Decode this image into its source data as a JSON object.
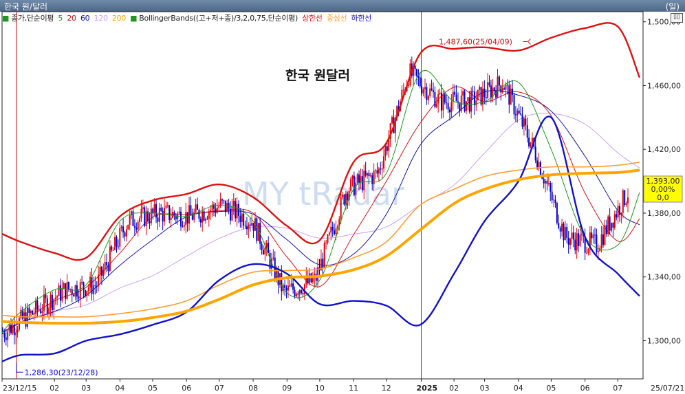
{
  "window": {
    "title": "한국 원/달러",
    "unit": "(일)"
  },
  "legend": {
    "price": "종가,단순이평",
    "ma5": "5",
    "ma20": "20",
    "ma60": "60",
    "ma120": "120",
    "ma200": "200",
    "bb": "BollingerBands((고+저+종)/3,2,0,75,단순이평)",
    "upper": "상한선",
    "middle": "중심선",
    "lower": "하한선"
  },
  "colors": {
    "candle_up": "#e00000",
    "candle_down": "#0000cc",
    "ma5": "#1a9a1a",
    "ma20": "#dd1111",
    "ma60": "#1111aa",
    "ma120": "#c8a0ff",
    "ma200": "#ffa500",
    "bb_upper": "#dd1111",
    "bb_middle": "#ff9e30",
    "bb_lower": "#1111cc"
  },
  "chart_data": {
    "type": "line",
    "title": "한국 원달러",
    "watermark": "MY tRadar",
    "y_ticks": [
      "1,500,00",
      "1,460,00",
      "1,420,00",
      "1,380,00",
      "1,340,00",
      "1,300,00"
    ],
    "ylim": [
      1280,
      1505
    ],
    "x_ticks": [
      "23/12/15",
      "02",
      "03",
      "04",
      "05",
      "06",
      "07",
      "08",
      "09",
      "10",
      "11",
      "12",
      "2025",
      "02",
      "03",
      "04",
      "05",
      "06",
      "07",
      "25/07/21"
    ],
    "x": [
      "2023-12-15",
      "2024-01-01",
      "2024-02-01",
      "2024-03-01",
      "2024-04-01",
      "2024-05-01",
      "2024-06-01",
      "2024-07-01",
      "2024-08-01",
      "2024-09-01",
      "2024-10-01",
      "2024-11-01",
      "2024-12-01",
      "2025-01-01",
      "2025-02-01",
      "2025-03-01",
      "2025-04-01",
      "2025-05-01",
      "2025-06-01",
      "2025-07-01",
      "2025-07-21"
    ],
    "series": [
      {
        "name": "종가",
        "values": [
          1305,
          1318,
          1332,
          1335,
          1375,
          1380,
          1378,
          1385,
          1375,
          1330,
          1338,
          1395,
          1405,
          1468,
          1450,
          1450,
          1462,
          1420,
          1365,
          1360,
          1393
        ]
      },
      {
        "name": "상한선",
        "values": [
          1367,
          1362,
          1355,
          1352,
          1378,
          1388,
          1392,
          1398,
          1390,
          1372,
          1363,
          1412,
          1424,
          1480,
          1483,
          1484,
          1482,
          1490,
          1496,
          1497,
          1465
        ]
      },
      {
        "name": "중심선",
        "values": [
          1316,
          1315,
          1315,
          1315,
          1317,
          1320,
          1325,
          1335,
          1343,
          1344,
          1345,
          1352,
          1362,
          1385,
          1395,
          1403,
          1407,
          1409,
          1409,
          1410,
          1412
        ]
      },
      {
        "name": "하한선",
        "values": [
          1287,
          1291,
          1292,
          1300,
          1304,
          1310,
          1318,
          1338,
          1348,
          1342,
          1323,
          1325,
          1322,
          1310,
          1342,
          1375,
          1400,
          1440,
          1365,
          1342,
          1328
        ]
      }
    ],
    "annotations": [
      {
        "label": "1,487,60(25/04/09)",
        "x": "2025-04-09",
        "y": 1487.6
      },
      {
        "label": "1,286,30(23/12/28)",
        "x": "2023-12-28",
        "y": 1286.3
      }
    ],
    "last_box": [
      "1,393,00",
      "0,00%",
      "0,0"
    ],
    "vlines": [
      "2023-12-28",
      "2025-01-02"
    ]
  }
}
